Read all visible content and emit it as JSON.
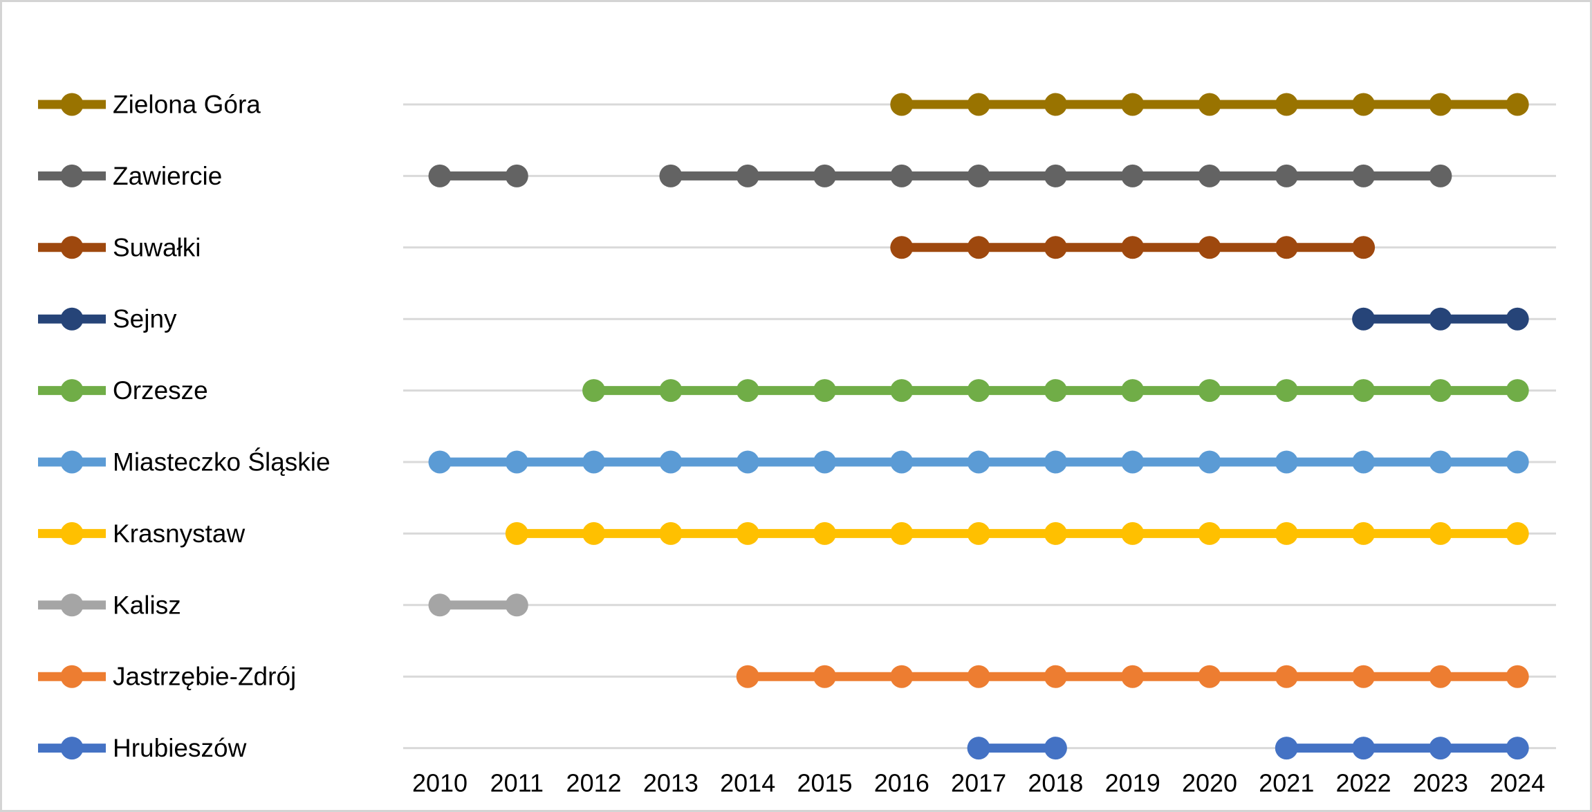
{
  "chart_data": {
    "type": "line",
    "description": "Timeline chart: horizontal year lines with per-year dot markers for each Polish town; gaps indicate missing years",
    "legend_position": "left",
    "grid": true,
    "x_axis": {
      "ticks": [
        2010,
        2011,
        2012,
        2013,
        2014,
        2015,
        2016,
        2017,
        2018,
        2019,
        2020,
        2021,
        2022,
        2023,
        2024
      ],
      "range": [
        2010,
        2024
      ]
    },
    "series": [
      {
        "name": "Zielona Góra",
        "color": "#997300",
        "years": [
          2016,
          2017,
          2018,
          2019,
          2020,
          2021,
          2022,
          2023,
          2024
        ]
      },
      {
        "name": "Zawiercie",
        "color": "#636363",
        "years": [
          2010,
          2011,
          2013,
          2014,
          2015,
          2016,
          2017,
          2018,
          2019,
          2020,
          2021,
          2022,
          2023
        ]
      },
      {
        "name": "Suwałki",
        "color": "#9E480E",
        "years": [
          2016,
          2017,
          2018,
          2019,
          2020,
          2021,
          2022
        ]
      },
      {
        "name": "Sejny",
        "color": "#264478",
        "years": [
          2022,
          2023,
          2024
        ]
      },
      {
        "name": "Orzesze",
        "color": "#70AD47",
        "years": [
          2012,
          2013,
          2014,
          2015,
          2016,
          2017,
          2018,
          2019,
          2020,
          2021,
          2022,
          2023,
          2024
        ]
      },
      {
        "name": "Miasteczko Śląskie",
        "color": "#5B9BD5",
        "years": [
          2010,
          2011,
          2012,
          2013,
          2014,
          2015,
          2016,
          2017,
          2018,
          2019,
          2020,
          2021,
          2022,
          2023,
          2024
        ]
      },
      {
        "name": "Krasnystaw",
        "color": "#FFC000",
        "years": [
          2011,
          2012,
          2013,
          2014,
          2015,
          2016,
          2017,
          2018,
          2019,
          2020,
          2021,
          2022,
          2023,
          2024
        ]
      },
      {
        "name": "Kalisz",
        "color": "#A5A5A5",
        "years": [
          2010,
          2011
        ]
      },
      {
        "name": "Jastrzębie-Zdrój",
        "color": "#ED7D31",
        "years": [
          2014,
          2015,
          2016,
          2017,
          2018,
          2019,
          2020,
          2021,
          2022,
          2023,
          2024
        ]
      },
      {
        "name": "Hrubieszów",
        "color": "#4472C4",
        "years": [
          2017,
          2018,
          2021,
          2022,
          2023,
          2024
        ]
      }
    ],
    "colors": {
      "gridline": "#D9D9D9",
      "axis_text": "#000000",
      "frame_border": "#D4D4D4",
      "background": "#FFFFFF"
    }
  }
}
